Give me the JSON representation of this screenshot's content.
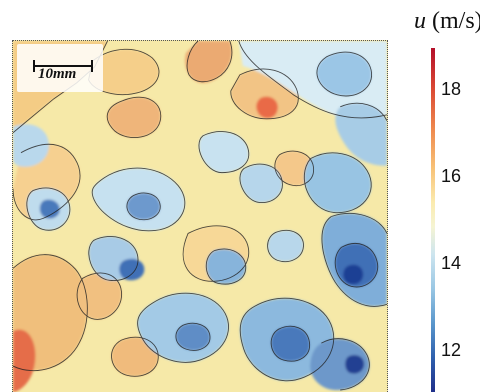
{
  "figure": {
    "scale_bar_label": "10mm",
    "colorbar": {
      "variable": "u",
      "unit": "(m/s)",
      "ticks": [
        "18",
        "16",
        "14",
        "12"
      ]
    },
    "palette": {
      "high": "#b30f2a",
      "mid_high": "#ef8b4f",
      "mid": "#fbebaf",
      "mid_low": "#99c7e4",
      "low": "#1f2f8a"
    }
  }
}
